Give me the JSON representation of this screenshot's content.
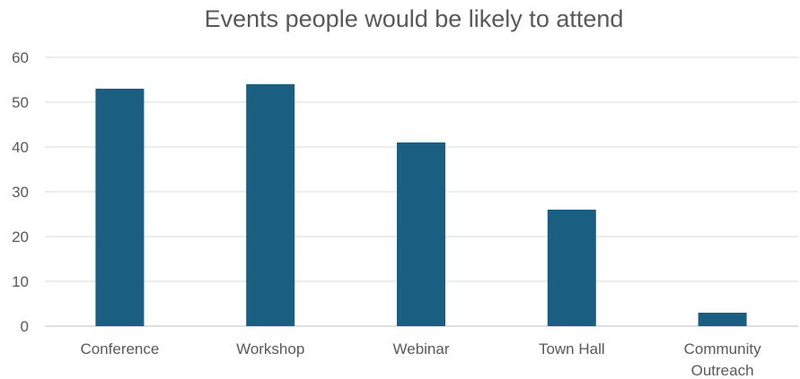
{
  "chart_data": {
    "type": "bar",
    "title": "Events people would be likely to attend",
    "categories": [
      "Conference",
      "Workshop",
      "Webinar",
      "Town Hall",
      "Community Outreach"
    ],
    "values": [
      53,
      54,
      41,
      26,
      3
    ],
    "ylim": [
      0,
      60
    ],
    "yticks": [
      "0",
      "10",
      "20",
      "30",
      "40",
      "50",
      "60"
    ],
    "grid": true,
    "legend": "none",
    "colors": {
      "bar": "#1a5e82",
      "text": "#595959",
      "grid": "#d9d9d9"
    }
  }
}
